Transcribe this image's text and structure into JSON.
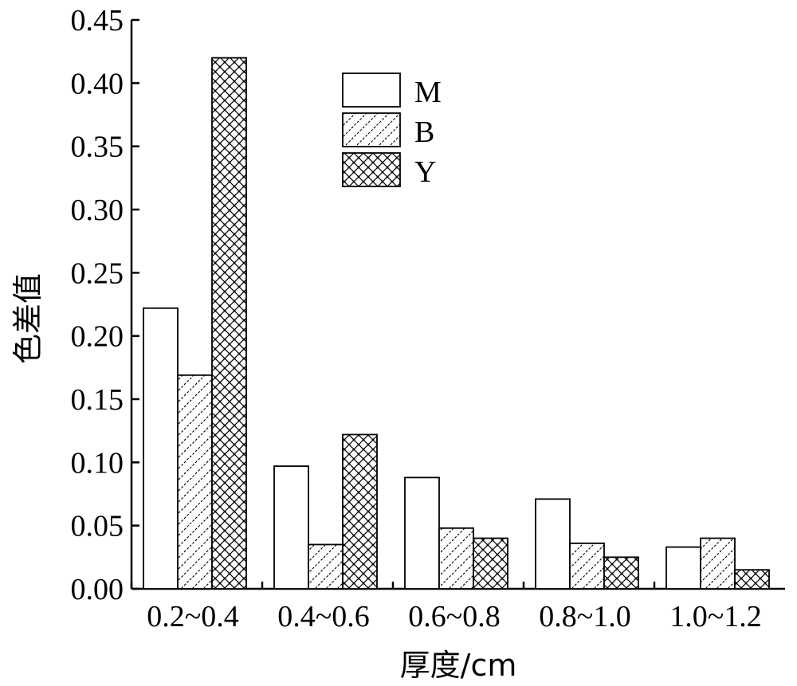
{
  "chart_data": {
    "type": "bar",
    "xlabel": "厚度/cm",
    "ylabel": "色差值",
    "ylim": [
      0,
      0.45
    ],
    "yticks": [
      "0.00",
      "0.05",
      "0.10",
      "0.15",
      "0.20",
      "0.25",
      "0.30",
      "0.35",
      "0.40",
      "0.45"
    ],
    "categories": [
      "0.2~0.4",
      "0.4~0.6",
      "0.6~0.8",
      "0.8~1.0",
      "1.0~1.2"
    ],
    "series": [
      {
        "name": "M",
        "values": [
          0.222,
          0.097,
          0.088,
          0.071,
          0.033
        ],
        "pattern": "none"
      },
      {
        "name": "B",
        "values": [
          0.169,
          0.035,
          0.048,
          0.036,
          0.04
        ],
        "pattern": "diagonal"
      },
      {
        "name": "Y",
        "values": [
          0.42,
          0.122,
          0.04,
          0.025,
          0.015
        ],
        "pattern": "crosshatch"
      }
    ],
    "legend_position": "top-center",
    "colors": {
      "bar_stroke": "#000000",
      "bar_fill": "#ffffff",
      "axis": "#000000"
    }
  }
}
